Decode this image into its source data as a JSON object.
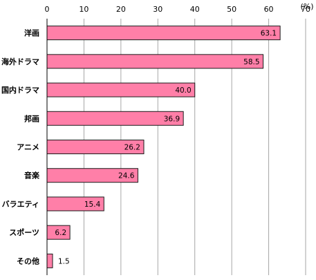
{
  "chart_data": {
    "type": "bar",
    "orientation": "horizontal",
    "unit_label": "(%)",
    "categories": [
      "洋画",
      "海外ドラマ",
      "国内ドラマ",
      "邦画",
      "アニメ",
      "音楽",
      "バラエティ",
      "スポーツ",
      "その他"
    ],
    "values": [
      63.1,
      58.5,
      40.0,
      36.9,
      26.2,
      24.6,
      15.4,
      6.2,
      1.5
    ],
    "value_labels": [
      "63.1",
      "58.5",
      "40.0",
      "36.9",
      "26.2",
      "24.6",
      "15.4",
      "6.2",
      "1.5"
    ],
    "xlim": [
      0,
      70
    ],
    "xticks": [
      "0",
      "10",
      "20",
      "30",
      "40",
      "50",
      "60",
      "70"
    ],
    "grid": true,
    "bar_color": "#ff7fa8",
    "bar_edge_color": "#1a1a1a",
    "grid_color": "#a6a6a6"
  }
}
